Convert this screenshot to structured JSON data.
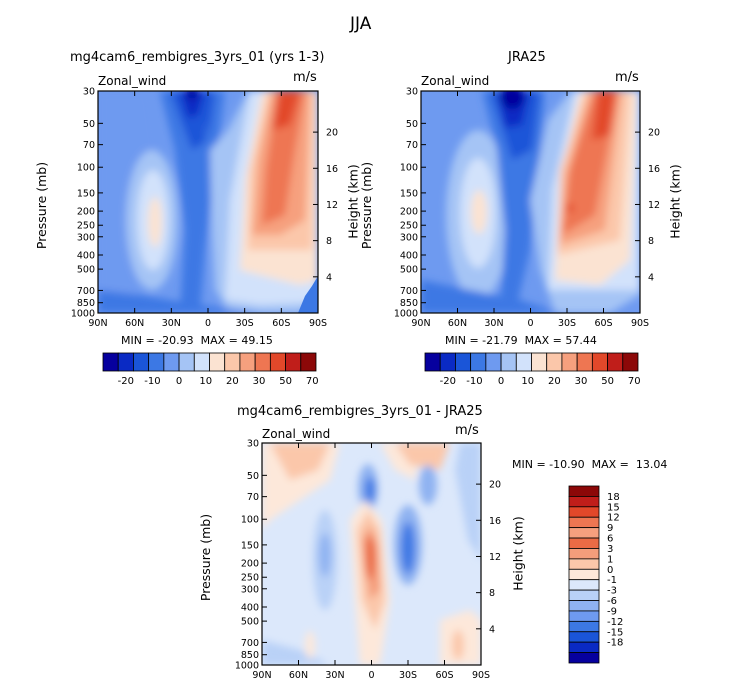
{
  "page_title": "JJA",
  "colors": {
    "m20": "#06009e",
    "m15": "#0a2ac4",
    "m10": "#1a55d8",
    "m5": "#3c78e4",
    "m0": "#6e9af0",
    "p0": "#a5c4f5",
    "p5": "#d2e2fb",
    "p10": "#fbe3d2",
    "p20": "#fbc7aa",
    "p30": "#f6a07e",
    "p40": "#ee7652",
    "p50": "#e2482a",
    "p60": "#c01e1a",
    "p70": "#8c0808",
    "d_neg3": "#8fb2f1",
    "d_neg1": "#b9d1f7",
    "d0": "#dce8fb",
    "d1": "#fde8da",
    "d3": "#fbc7aa",
    "d6": "#f49d7b",
    "d9": "#ea6b45"
  },
  "chart_data": [
    {
      "type": "heatmap",
      "name": "panel-model",
      "title": "mg4cam6_rembigres_3yrs_01 (yrs 1-3)",
      "field_label": "Zonal_wind",
      "units": "m/s",
      "ylabel": "Pressure (mb)",
      "ylabel_right": "Height (km)",
      "x_ticks": [
        "90N",
        "60N",
        "30N",
        "0",
        "30S",
        "60S",
        "90S"
      ],
      "y_ticks": [
        "30",
        "50",
        "70",
        "100",
        "150",
        "200",
        "250",
        "300",
        "400",
        "500",
        "700",
        "850",
        "1000"
      ],
      "y_ticks_right": [
        "20",
        "16",
        "12",
        "8",
        "4"
      ],
      "min": "-20.93",
      "max": "49.15",
      "stats_text": "MIN = -20.93  MAX = 49.15",
      "colorbar_levels": [
        "-20",
        "-10",
        "0",
        "10",
        "20",
        "30",
        "50",
        "70"
      ]
    },
    {
      "type": "heatmap",
      "name": "panel-obs",
      "title": "JRA25",
      "field_label": "Zonal_wind",
      "units": "m/s",
      "ylabel": "Pressure (mb)",
      "ylabel_right": "Height (km)",
      "x_ticks": [
        "90N",
        "60N",
        "30N",
        "0",
        "30S",
        "60S",
        "90S"
      ],
      "y_ticks": [
        "30",
        "50",
        "70",
        "100",
        "150",
        "200",
        "250",
        "300",
        "400",
        "500",
        "700",
        "850",
        "1000"
      ],
      "y_ticks_right": [
        "20",
        "16",
        "12",
        "8",
        "4"
      ],
      "min": "-21.79",
      "max": "57.44",
      "stats_text": "MIN = -21.79  MAX = 57.44",
      "colorbar_levels": [
        "-20",
        "-10",
        "0",
        "10",
        "20",
        "30",
        "50",
        "70"
      ]
    },
    {
      "type": "heatmap",
      "name": "panel-diff",
      "title": "mg4cam6_rembigres_3yrs_01 - JRA25",
      "field_label": "Zonal_wind",
      "units": "m/s",
      "ylabel": "Pressure (mb)",
      "ylabel_right": "Height (km)",
      "x_ticks": [
        "90N",
        "60N",
        "30N",
        "0",
        "30S",
        "60S",
        "90S"
      ],
      "y_ticks": [
        "30",
        "50",
        "70",
        "100",
        "150",
        "200",
        "250",
        "300",
        "400",
        "500",
        "700",
        "850",
        "1000"
      ],
      "y_ticks_right": [
        "20",
        "16",
        "12",
        "8",
        "4"
      ],
      "min": "-10.90",
      "max": "13.04",
      "stats_text": "MIN = -10.90  MAX =  13.04",
      "colorbar_levels": [
        "18",
        "15",
        "12",
        "9",
        "6",
        "3",
        "1",
        "0",
        "-1",
        "-3",
        "-6",
        "-9",
        "-12",
        "-15",
        "-18"
      ]
    }
  ]
}
